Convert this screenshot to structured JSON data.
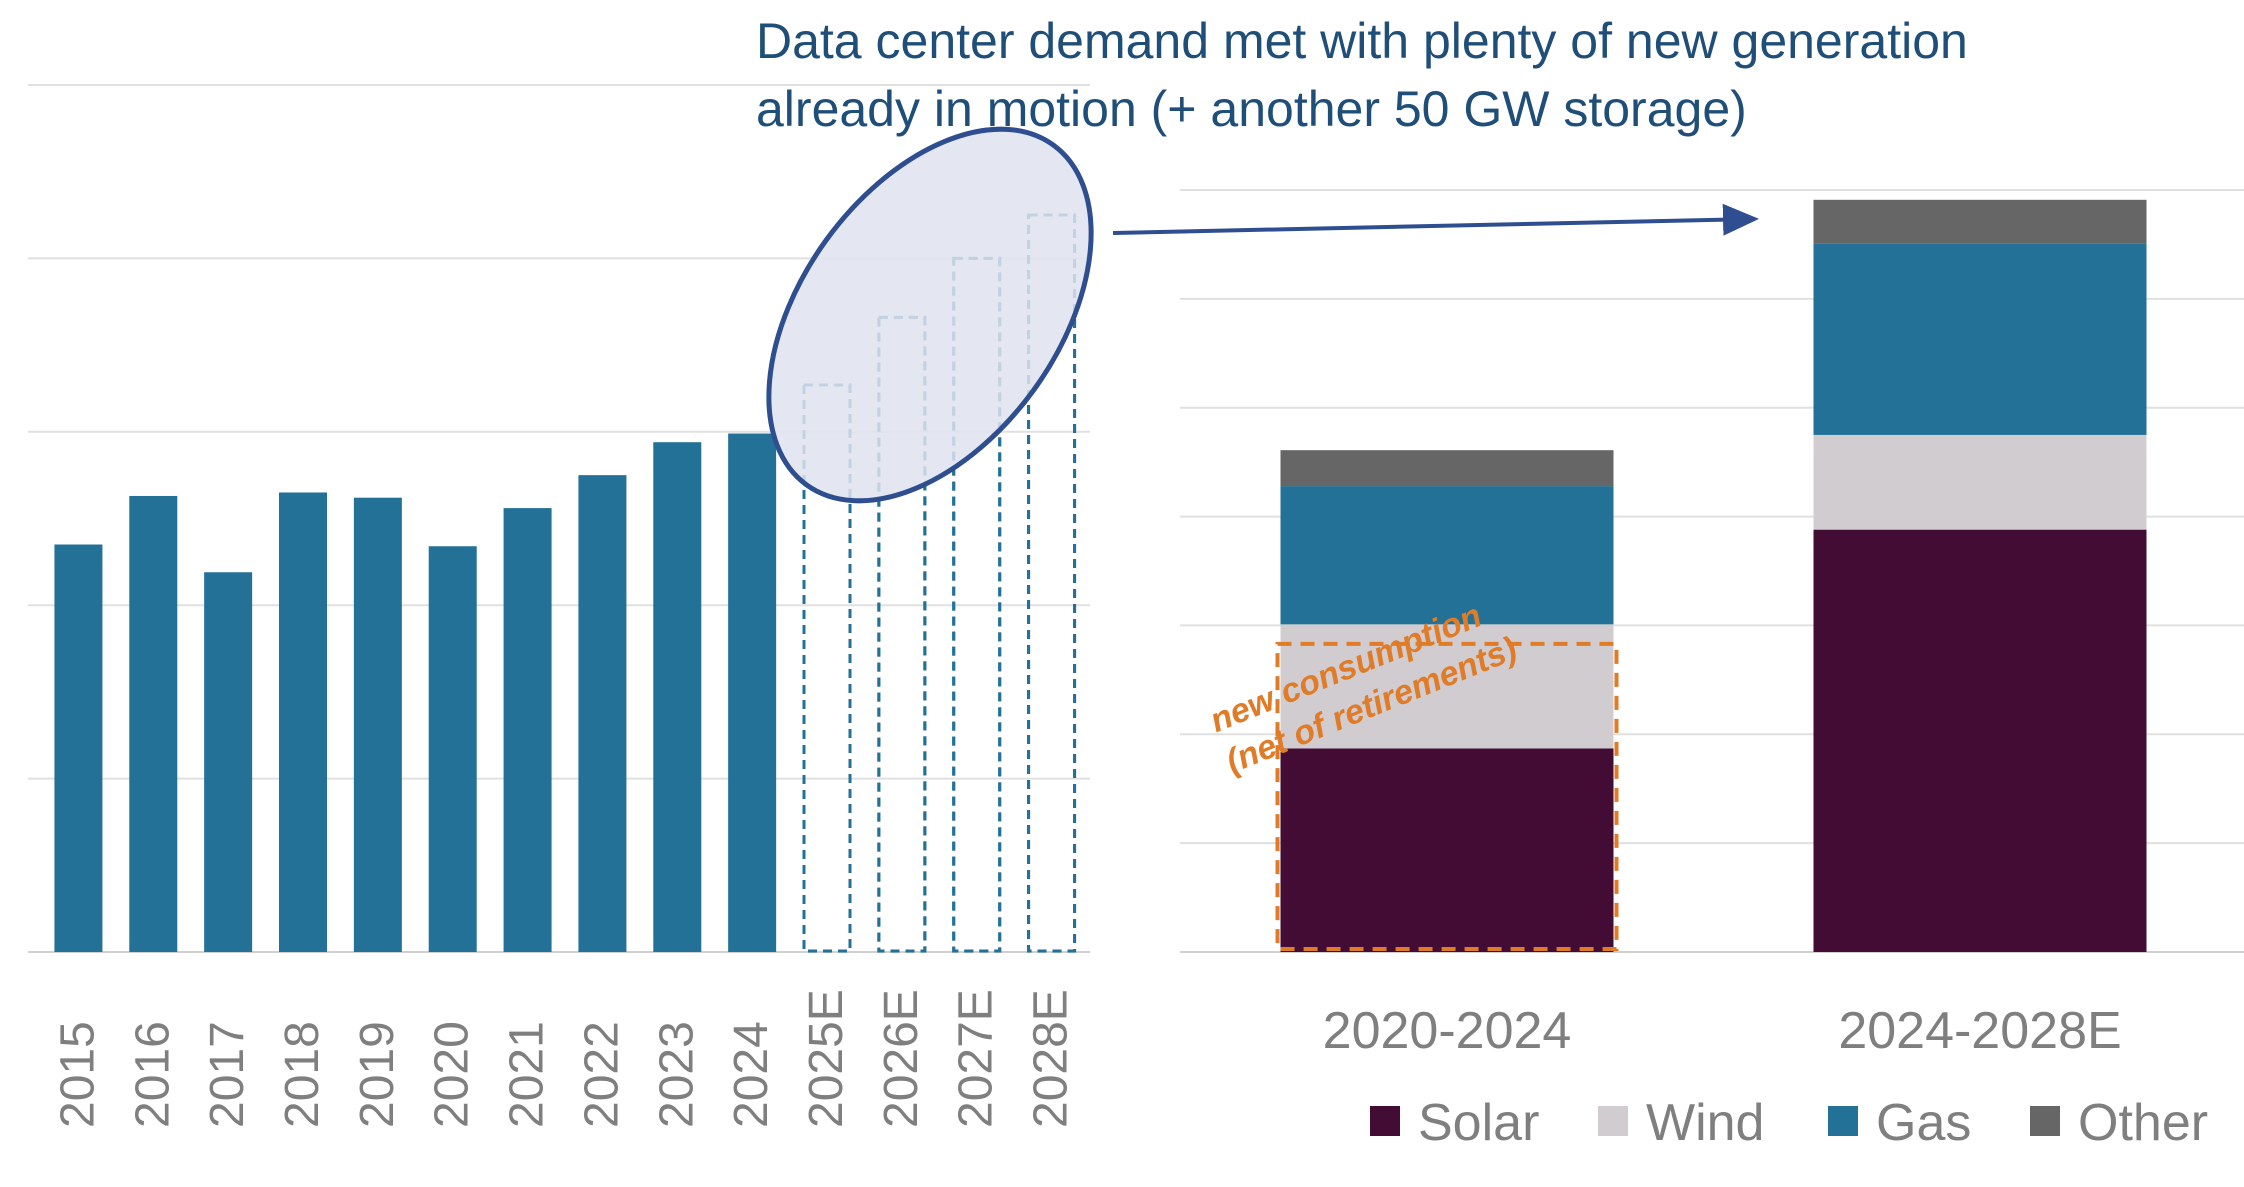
{
  "title_lines": [
    "Data center demand met with plenty of new generation",
    "already in motion (+ another 50 GW storage)"
  ],
  "annotation": {
    "line1": "new consumption",
    "line2": "(net of retirements)"
  },
  "colors": {
    "bar": "#237196",
    "projected_outline": "#237196",
    "ellipse_fill": "#dfe3ef",
    "ellipse_stroke": "#2e4e8f",
    "arrow": "#2e4e8f",
    "title": "#1f4e79",
    "annotation": "#e07b27",
    "grid": "#e0e0e0",
    "axis_text": "#7f7f7f",
    "Solar": "#430c35",
    "Wind": "#d0ccd0",
    "Gas": "#237196",
    "Other": "#666666"
  },
  "chart_data": [
    {
      "type": "bar",
      "title": "",
      "xlabel": "",
      "ylabel": "",
      "ylim": [
        0,
        5.0
      ],
      "grid": true,
      "categories": [
        "2015",
        "2016",
        "2017",
        "2018",
        "2019",
        "2020",
        "2021",
        "2022",
        "2023",
        "2024",
        "2025E",
        "2026E",
        "2027E",
        "2028E"
      ],
      "series": [
        {
          "values": [
            2.35,
            2.63,
            2.19,
            2.65,
            2.62,
            2.34,
            2.56,
            2.75,
            2.94,
            2.99,
            3.27,
            3.66,
            4.0,
            4.25
          ],
          "projected": [
            false,
            false,
            false,
            false,
            false,
            false,
            false,
            false,
            false,
            false,
            true,
            true,
            true,
            true
          ]
        }
      ]
    },
    {
      "type": "bar",
      "stacked": true,
      "title": "",
      "xlabel": "",
      "ylabel": "",
      "ylim": [
        0,
        70
      ],
      "grid": true,
      "legend_position": "bottom",
      "categories": [
        "2020-2024",
        "2024-2028E"
      ],
      "series": [
        {
          "name": "Solar",
          "values": [
            18.7,
            38.8
          ]
        },
        {
          "name": "Wind",
          "values": [
            11.4,
            8.7
          ]
        },
        {
          "name": "Gas",
          "values": [
            12.7,
            17.6
          ]
        },
        {
          "name": "Other",
          "values": [
            3.3,
            4.0
          ]
        }
      ]
    }
  ]
}
